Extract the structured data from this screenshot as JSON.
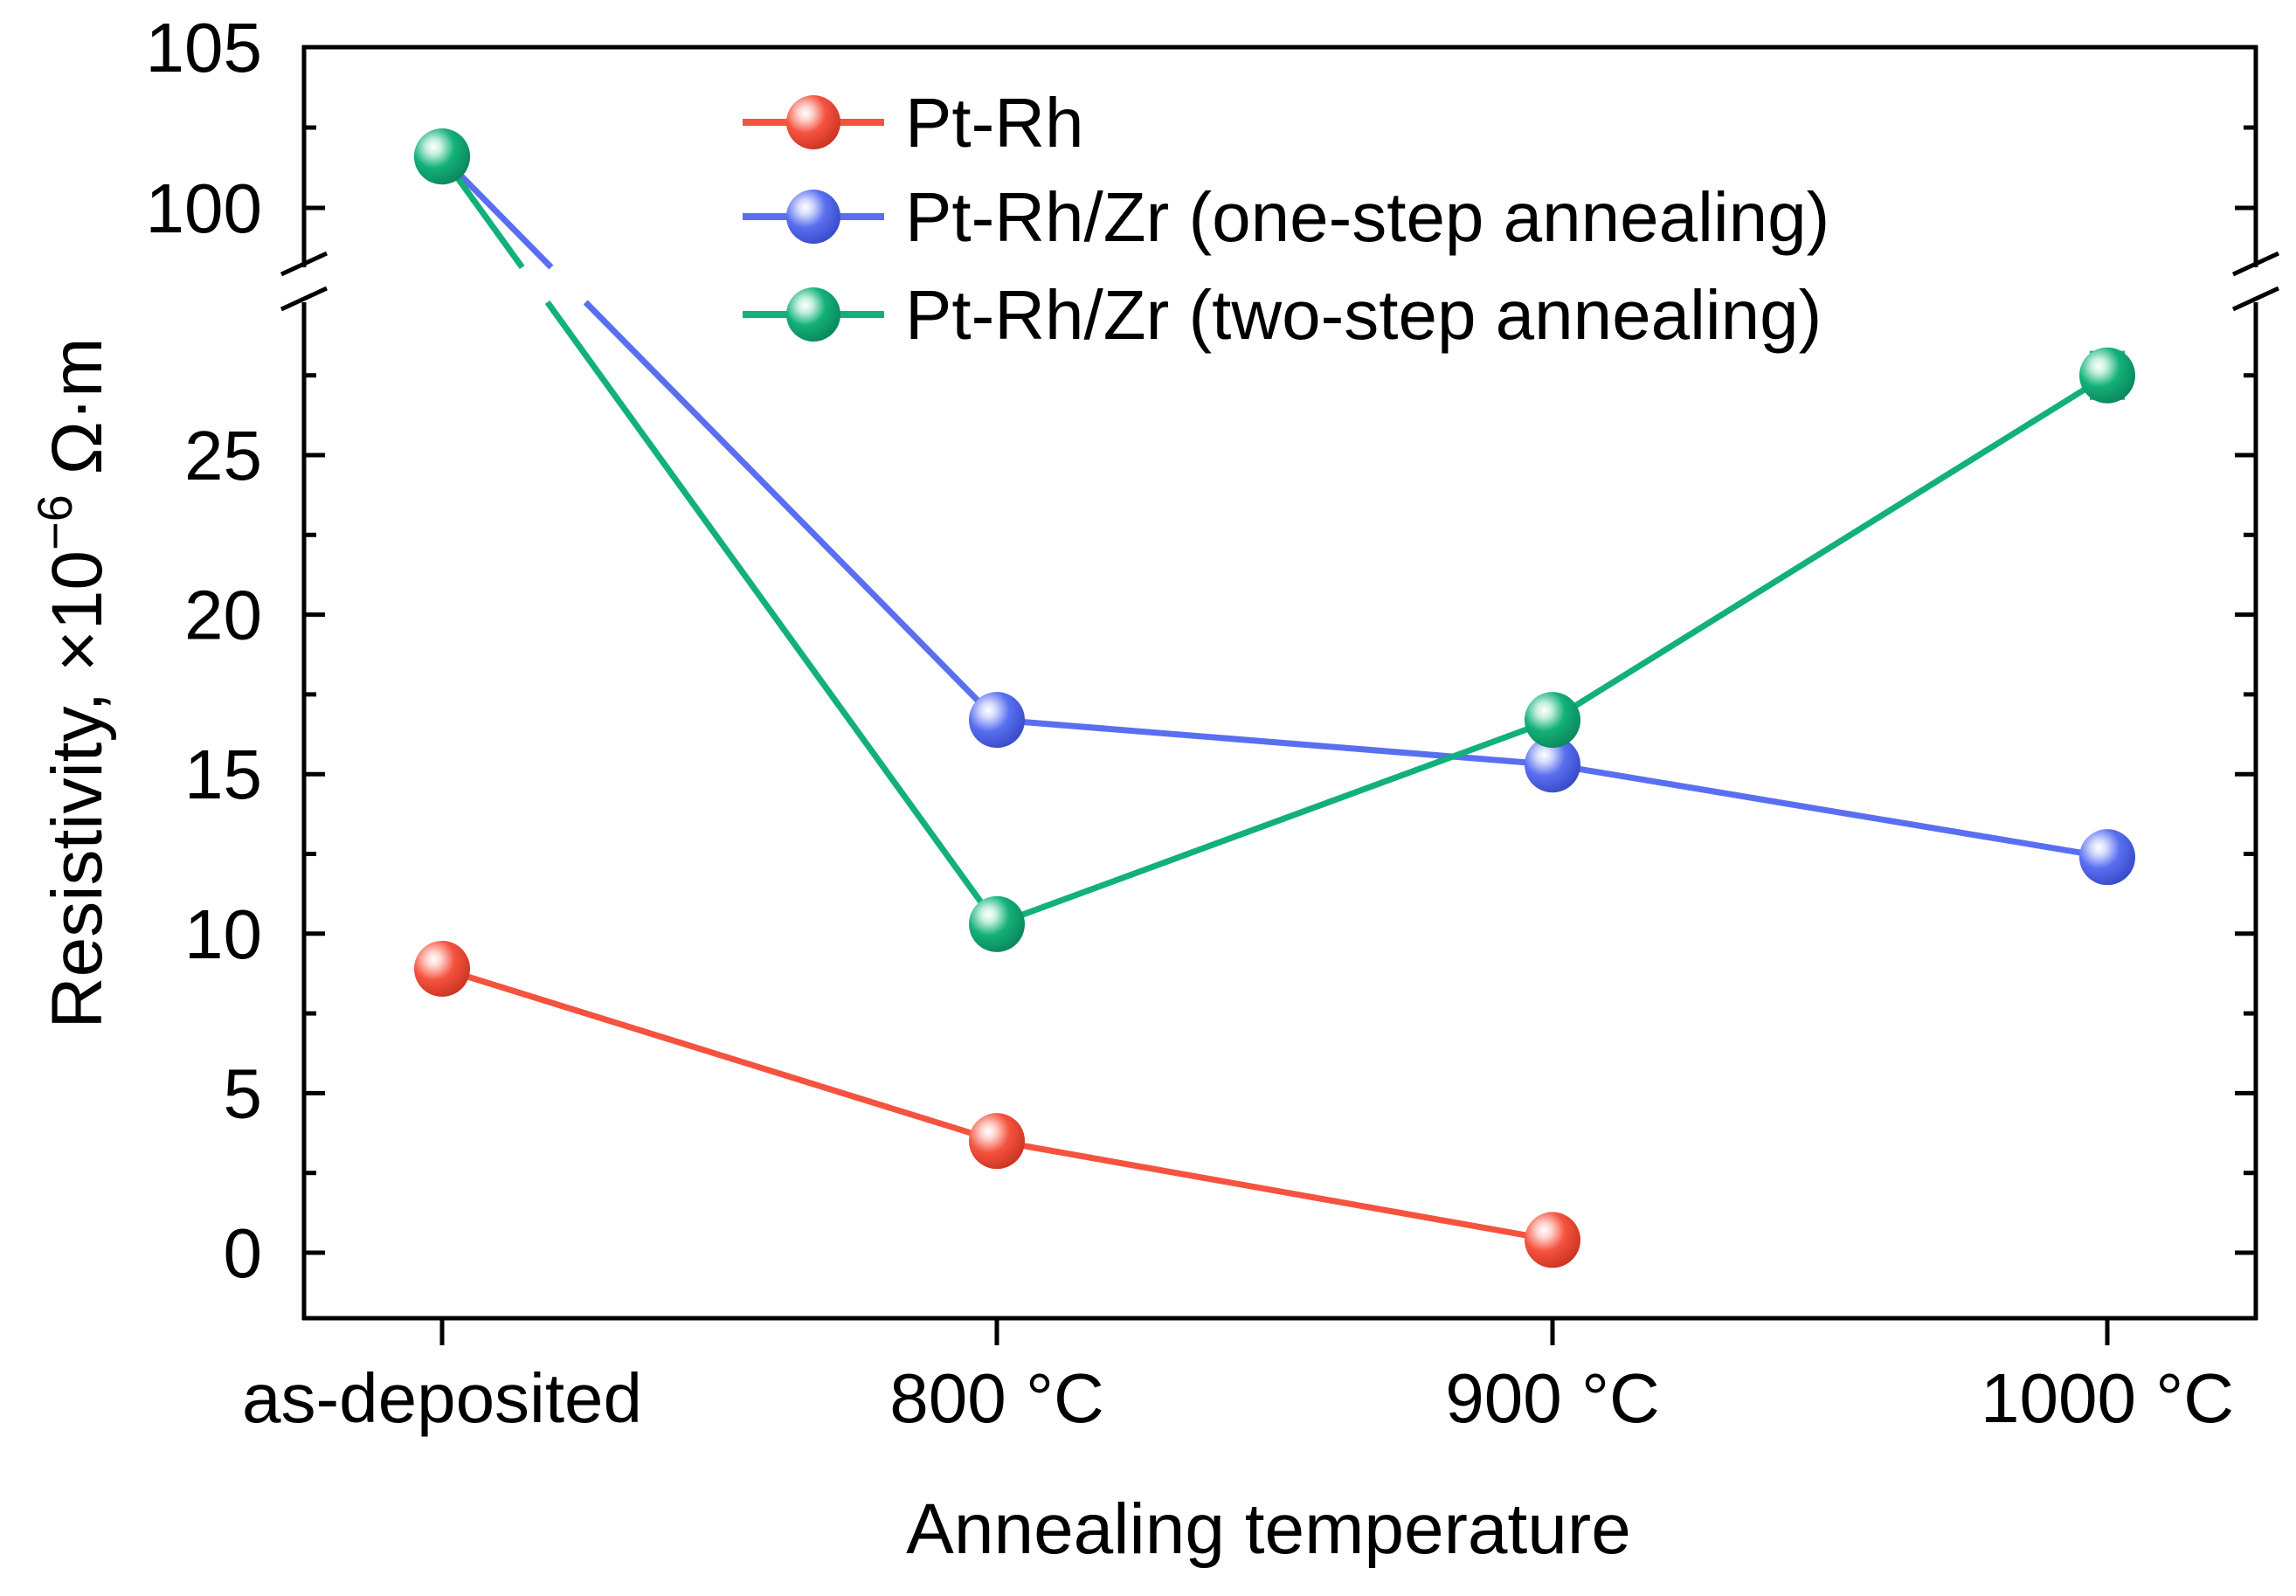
{
  "chart_data": {
    "type": "line",
    "xlabel": "Annealing temperature",
    "ylabel": "Resistivity, ×10",
    "ylabel_exp": "−6",
    "ylabel_unit": " Ω·m",
    "categories": [
      "as-deposited",
      "800 °C",
      "900 °C",
      "1000 °C"
    ],
    "y_axis_break": {
      "lower_range": [
        -2,
        29
      ],
      "upper_range": [
        98,
        105
      ]
    },
    "lower_ticks": [
      "0",
      "5",
      "10",
      "15",
      "20",
      "25"
    ],
    "upper_ticks": [
      "100",
      "105"
    ],
    "legend_position": "top-center",
    "series": [
      {
        "name": "Pt-Rh",
        "color": "#f4533f",
        "values": [
          8.9,
          3.5,
          0.4,
          null
        ],
        "errors": [
          0.3,
          0.3,
          0.2,
          null
        ]
      },
      {
        "name": "Pt-Rh/Zr (one-step annealing)",
        "color": "#5a6ff0",
        "values": [
          101.6,
          16.7,
          15.3,
          12.4
        ],
        "errors": [
          0.4,
          0.3,
          0.3,
          0.3
        ]
      },
      {
        "name": "Pt-Rh/Zr (two-step annealing)",
        "color": "#12b07a",
        "values": [
          101.6,
          10.3,
          16.7,
          27.5
        ],
        "errors": [
          0.4,
          0.3,
          0.3,
          0.7
        ]
      }
    ]
  }
}
